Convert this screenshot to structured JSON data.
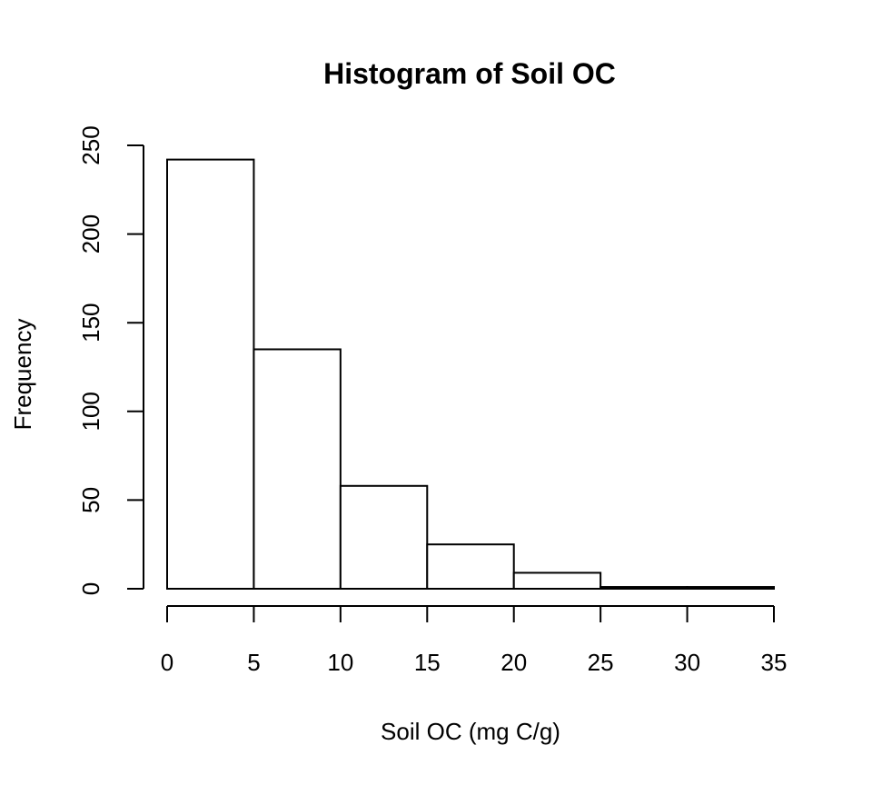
{
  "chart_data": {
    "type": "bar",
    "subtype": "histogram",
    "title": "Histogram of Soil OC",
    "xlabel": "Soil OC (mg C/g)",
    "ylabel": "Frequency",
    "bins": [
      {
        "start": 0,
        "end": 5,
        "count": 242
      },
      {
        "start": 5,
        "end": 10,
        "count": 135
      },
      {
        "start": 10,
        "end": 15,
        "count": 58
      },
      {
        "start": 15,
        "end": 20,
        "count": 25
      },
      {
        "start": 20,
        "end": 25,
        "count": 9
      },
      {
        "start": 25,
        "end": 30,
        "count": 1
      },
      {
        "start": 30,
        "end": 35,
        "count": 1
      }
    ],
    "xlim": [
      0,
      35
    ],
    "ylim": [
      0,
      250
    ],
    "x_ticks": [
      0,
      5,
      10,
      15,
      20,
      25,
      30,
      35
    ],
    "y_ticks": [
      0,
      50,
      100,
      150,
      200,
      250
    ],
    "x_tick_labels": [
      "0",
      "5",
      "10",
      "15",
      "20",
      "25",
      "30",
      "35"
    ],
    "y_tick_labels": [
      "0",
      "50",
      "100",
      "150",
      "200",
      "250"
    ],
    "grid": false,
    "legend": "none",
    "bar_fill": "#ffffff",
    "bar_stroke": "#000000"
  }
}
